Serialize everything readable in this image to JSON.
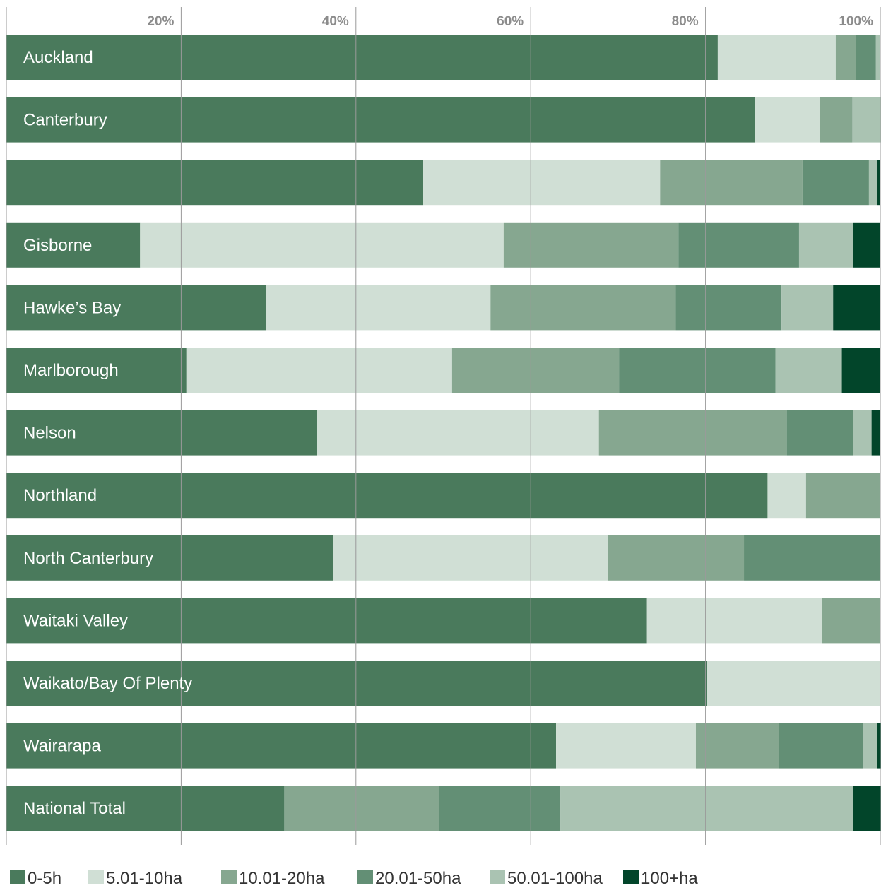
{
  "chart_data": {
    "type": "bar",
    "orientation": "horizontal",
    "stacked": true,
    "title": "",
    "xlabel": "",
    "ylabel": "",
    "xlim": [
      0,
      100
    ],
    "x_ticks": [
      "20%",
      "40%",
      "60%",
      "80%",
      "100%"
    ],
    "grid": true,
    "legend_position": "bottom",
    "categories": [
      "Auckland",
      "Canterbury",
      "",
      "Gisborne",
      "Hawke’s Bay",
      "Marlborough",
      "Nelson",
      "Northland",
      "North Canterbury",
      "Waitaki Valley",
      "Waikato/Bay Of Plenty",
      "Wairarapa",
      "National Total"
    ],
    "series": [
      {
        "name": "0-5h",
        "color": "#4a7a5c",
        "values": [
          81.4,
          85.7,
          47.7,
          15.3,
          29.7,
          20.6,
          35.5,
          87.1,
          37.4,
          73.3,
          80.2,
          62.9,
          31.8
        ]
      },
      {
        "name": "5.01-10ha",
        "color": "#d0dfd5",
        "values": [
          13.5,
          7.4,
          27.1,
          41.6,
          25.7,
          30.4,
          32.3,
          4.4,
          31.4,
          20.0,
          19.8,
          16.0,
          0
        ]
      },
      {
        "name": "10.01-20ha",
        "color": "#86a790",
        "values": [
          2.3,
          3.7,
          16.3,
          20.0,
          21.2,
          19.1,
          21.5,
          8.5,
          15.6,
          6.7,
          0,
          9.5,
          17.7
        ]
      },
      {
        "name": "20.01-50ha",
        "color": "#638f75",
        "values": [
          2.3,
          0,
          7.6,
          13.8,
          12.1,
          17.9,
          7.6,
          0,
          15.6,
          0,
          0,
          9.6,
          13.9
        ]
      },
      {
        "name": "50.01-100ha",
        "color": "#aac3b2",
        "values": [
          0.5,
          3.5,
          0.9,
          6.2,
          5.9,
          7.6,
          2.1,
          0,
          0,
          0,
          0,
          1.6,
          33.5
        ]
      },
      {
        "name": "100+ha",
        "color": "#02452a",
        "values": [
          0,
          0,
          0.4,
          3.1,
          5.4,
          4.4,
          1.0,
          0,
          0,
          0,
          0,
          0.8,
          3.4
        ]
      }
    ]
  }
}
